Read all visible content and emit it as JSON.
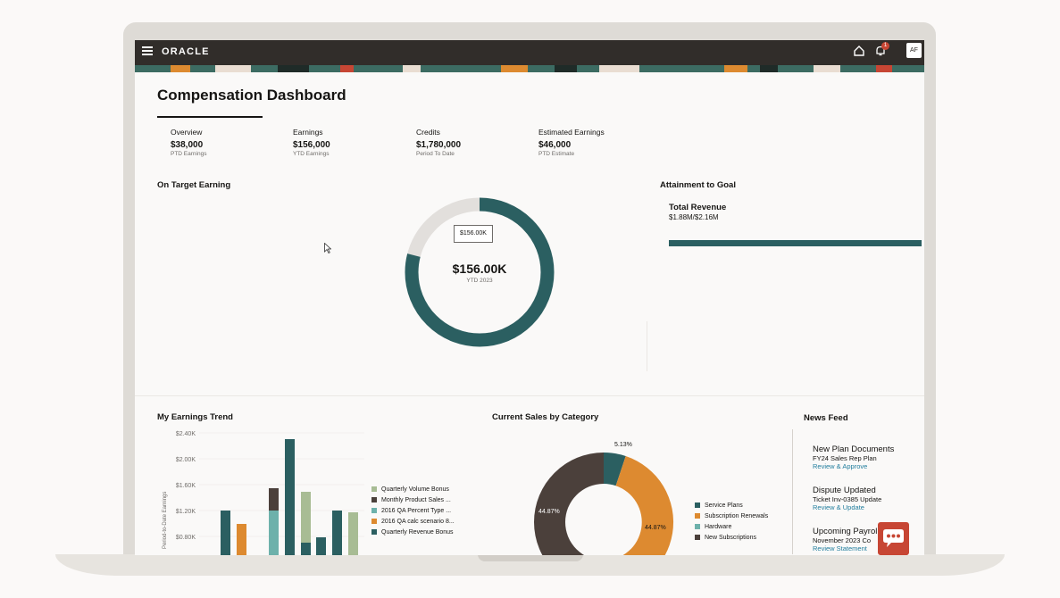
{
  "app": {
    "brand": "ORACLE",
    "avatar_initials": "AF",
    "notification_count": "1"
  },
  "page": {
    "title": "Compensation Dashboard"
  },
  "kpis": [
    {
      "label": "Overview",
      "value": "$38,000",
      "sub": "PTD Earnings"
    },
    {
      "label": "Earnings",
      "value": "$156,000",
      "sub": "YTD Earnings"
    },
    {
      "label": "Credits",
      "value": "$1,780,000",
      "sub": "Period To Date"
    },
    {
      "label": "Estimated Earnings",
      "value": "$46,000",
      "sub": "PTD Estimate"
    }
  ],
  "on_target": {
    "title": "On Target Earning",
    "tooltip": "$156.00K",
    "center_value": "$156.00K",
    "center_label": "YTD 2023",
    "progress_fraction": 0.79
  },
  "attainment": {
    "title": "Attainment to Goal",
    "name": "Total Revenue",
    "value": "$1.88M/$2.16M",
    "progress_fraction": 0.87
  },
  "earnings_trend": {
    "title": "My Earnings Trend",
    "ylabel": "Period-to-Date Earnings",
    "ticks": [
      "$2.40K",
      "$2.00K",
      "$1.60K",
      "$1.20K",
      "$0.80K"
    ],
    "legend": [
      {
        "name": "Quarterly Volume Bonus",
        "color": "#a8bc94"
      },
      {
        "name": "Monthly Product Sales ...",
        "color": "#4b403b"
      },
      {
        "name": "2016 QA Percent Type ...",
        "color": "#6db1ab"
      },
      {
        "name": "2016 QA calc scenario 8...",
        "color": "#dd8a30"
      },
      {
        "name": "Quarterly Revenue Bonus",
        "color": "#2b5f61"
      }
    ]
  },
  "sales_category": {
    "title": "Current Sales by Category",
    "labels": [
      "5.13%",
      "44.87%",
      "44.87%"
    ],
    "legend": [
      {
        "name": "Service Plans",
        "color": "#2b5f61"
      },
      {
        "name": "Subscription Renewals",
        "color": "#dd8a30"
      },
      {
        "name": "Hardware",
        "color": "#6db1ab"
      },
      {
        "name": "New Subscriptions",
        "color": "#4b403b"
      }
    ]
  },
  "news": {
    "title": "News Feed",
    "items": [
      {
        "title": "New Plan Documents",
        "sub": "FY24 Sales Rep Plan",
        "link": "Review & Approve"
      },
      {
        "title": "Dispute Updated",
        "sub": "Ticket Inv-0385 Update",
        "link": "Review & Update"
      },
      {
        "title": "Upcoming Payrol",
        "sub": "November 2023 Co",
        "link": "Review Statement"
      }
    ]
  }
}
